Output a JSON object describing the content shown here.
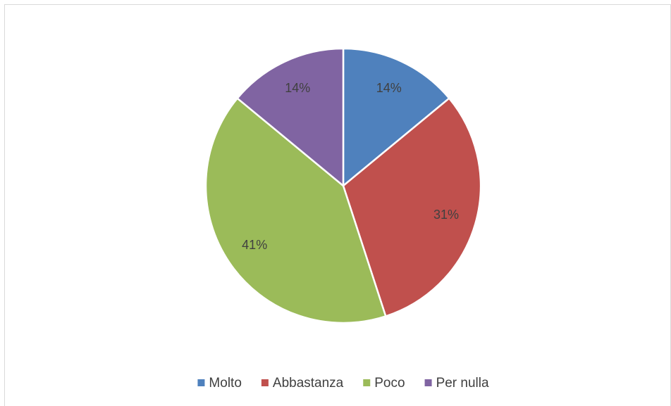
{
  "chart_data": {
    "type": "pie",
    "categories": [
      "Molto",
      "Abbastanza",
      "Poco",
      "Per nulla"
    ],
    "values": [
      14,
      31,
      41,
      14
    ],
    "value_labels": [
      "14%",
      "31%",
      "41%",
      "14%"
    ],
    "colors": [
      "#4f81bd",
      "#c0504d",
      "#9bbb59",
      "#8064a2"
    ],
    "legend": "bottom"
  }
}
